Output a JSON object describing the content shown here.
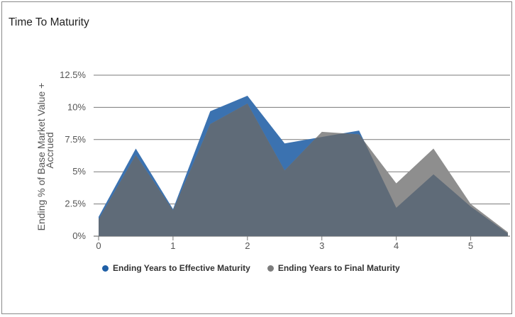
{
  "panel": {
    "title": "Time To Maturity"
  },
  "chart_data": {
    "type": "area",
    "ylabel": "Ending % of Base Market Value + Accrued",
    "ylabel_lines": [
      "Ending % of Base Market Value +",
      "Accrued"
    ],
    "xlabel": "",
    "ylim": [
      0,
      12.5
    ],
    "xlim": [
      0,
      5.5
    ],
    "y_ticks": [
      0,
      2.5,
      5,
      7.5,
      10,
      12.5
    ],
    "y_tick_labels": [
      "0%",
      "2.5%",
      "5%",
      "7.5%",
      "10%",
      "12.5%"
    ],
    "x_ticks": [
      0,
      1,
      2,
      3,
      4,
      5
    ],
    "x_tick_labels": [
      "0",
      "1",
      "2",
      "3",
      "4",
      "5"
    ],
    "grid": "horizontal",
    "legend_position": "bottom-left",
    "series": [
      {
        "name": "Ending Years to Effective Maturity",
        "color": "#3b72b0",
        "x": [
          0,
          0.5,
          1,
          1.5,
          2,
          2.5,
          3,
          3.5,
          4,
          4.5,
          5,
          5.5
        ],
        "values": [
          1.5,
          6.8,
          2.1,
          9.7,
          10.9,
          7.2,
          7.7,
          8.2,
          2.2,
          4.8,
          2.3,
          0.2
        ]
      },
      {
        "name": "Ending Years to Final Maturity",
        "color": "#8e8e8e",
        "x": [
          0,
          0.5,
          1,
          1.5,
          2,
          2.5,
          3,
          3.5,
          4,
          4.5,
          5,
          5.5
        ],
        "values": [
          1.3,
          6.3,
          2.0,
          8.7,
          10.3,
          5.1,
          8.1,
          7.9,
          4.1,
          6.8,
          2.5,
          0.3
        ]
      }
    ],
    "overlap_color": "#5f6b78"
  }
}
